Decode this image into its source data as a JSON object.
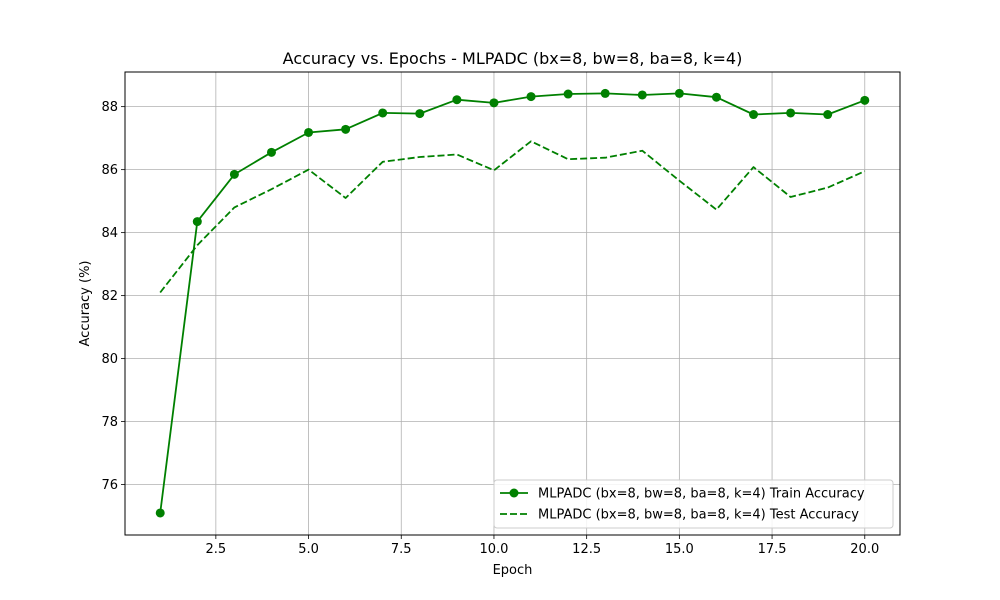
{
  "chart_data": {
    "type": "line",
    "title": "Accuracy vs. Epochs - MLPADC (bx=8, bw=8, ba=8, k=4)",
    "xlabel": "Epoch",
    "ylabel": "Accuracy (%)",
    "xlim": [
      0.05,
      20.95
    ],
    "ylim": [
      74.4,
      89.1
    ],
    "xticks": [
      2.5,
      5.0,
      7.5,
      10.0,
      12.5,
      15.0,
      17.5,
      20.0
    ],
    "xtick_labels": [
      "2.5",
      "5.0",
      "7.5",
      "10.0",
      "12.5",
      "15.0",
      "17.5",
      "20.0"
    ],
    "yticks": [
      76,
      78,
      80,
      82,
      84,
      86,
      88
    ],
    "ytick_labels": [
      "76",
      "78",
      "80",
      "82",
      "84",
      "86",
      "88"
    ],
    "grid": true,
    "legend_position": "lower-right",
    "x": [
      1,
      2,
      3,
      4,
      5,
      6,
      7,
      8,
      9,
      10,
      11,
      12,
      13,
      14,
      15,
      16,
      17,
      18,
      19,
      20
    ],
    "series": [
      {
        "name": "MLPADC (bx=8, bw=8, ba=8, k=4) Train Accuracy",
        "color": "#008000",
        "style": "solid",
        "marker": "circle",
        "values": [
          75.1,
          84.35,
          85.85,
          86.55,
          87.18,
          87.28,
          87.8,
          87.78,
          88.22,
          88.12,
          88.32,
          88.4,
          88.42,
          88.37,
          88.42,
          88.3,
          87.75,
          87.8,
          87.75,
          88.2
        ]
      },
      {
        "name": "MLPADC (bx=8, bw=8, ba=8, k=4) Test Accuracy",
        "color": "#008000",
        "style": "dashed",
        "marker": "none",
        "values": [
          82.1,
          83.6,
          84.8,
          85.38,
          86.0,
          85.1,
          86.25,
          86.4,
          86.48,
          85.98,
          86.9,
          86.33,
          86.38,
          86.6,
          85.65,
          84.73,
          86.08,
          85.13,
          85.43,
          85.95
        ]
      }
    ]
  }
}
